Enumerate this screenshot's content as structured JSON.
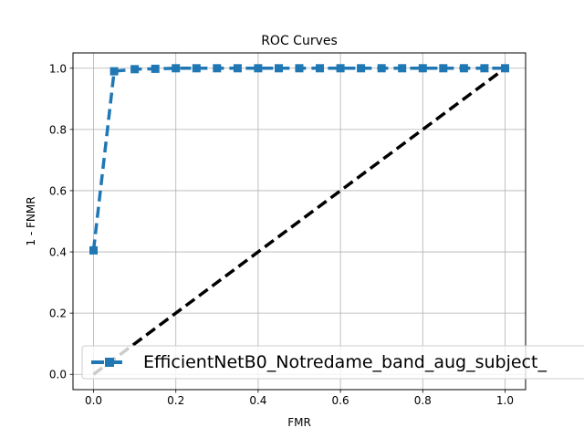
{
  "chart_data": {
    "type": "line",
    "title": "ROC Curves",
    "xlabel": "FMR",
    "ylabel": "1 - FNMR",
    "xlim": [
      -0.05,
      1.05
    ],
    "ylim": [
      -0.05,
      1.05
    ],
    "xticks": [
      0.0,
      0.2,
      0.4,
      0.6,
      0.8,
      1.0
    ],
    "xtick_labels": [
      "0.0",
      "0.2",
      "0.4",
      "0.6",
      "0.8",
      "1.0"
    ],
    "yticks": [
      0.0,
      0.2,
      0.4,
      0.6,
      0.8,
      1.0
    ],
    "ytick_labels": [
      "0.0",
      "0.2",
      "0.4",
      "0.6",
      "0.8",
      "1.0"
    ],
    "grid": true,
    "legend_position": "lower-right",
    "series": [
      {
        "name": "EfficientNetB0_Notredame_band_aug_subject_",
        "color": "#1f77b4",
        "linestyle": "dashed",
        "marker": "square",
        "x": [
          0.0,
          0.05,
          0.1,
          0.15,
          0.2,
          0.25,
          0.3,
          0.35,
          0.4,
          0.45,
          0.5,
          0.55,
          0.6,
          0.65,
          0.7,
          0.75,
          0.8,
          0.85,
          0.9,
          0.95,
          1.0
        ],
        "y": [
          0.405,
          0.99,
          0.997,
          0.998,
          1.0,
          1.0,
          1.0,
          1.0,
          1.0,
          1.0,
          1.0,
          1.0,
          1.0,
          1.0,
          1.0,
          1.0,
          1.0,
          1.0,
          1.0,
          1.0,
          1.0
        ]
      },
      {
        "name": "",
        "color": "#000000",
        "linestyle": "dashed",
        "marker": "none",
        "x": [
          0.0,
          1.0
        ],
        "y": [
          0.0,
          1.0
        ]
      }
    ]
  }
}
